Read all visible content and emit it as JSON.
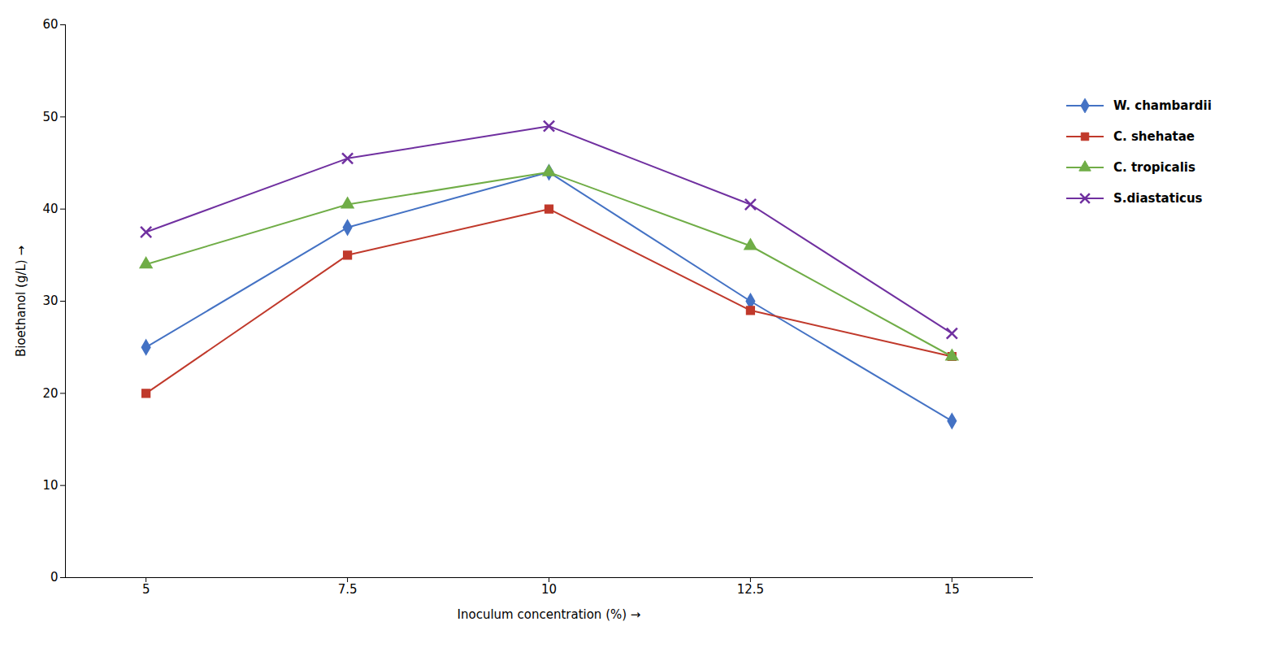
{
  "chart_data": {
    "type": "line",
    "xlabel": "Inoculum concentration (%)",
    "ylabel": "Bioethanol (g/L)",
    "x": [
      5,
      7.5,
      10,
      12.5,
      15
    ],
    "series": [
      {
        "name": "W. chambardii",
        "color": "#4472C4",
        "marker": "diamond",
        "values": [
          25,
          38,
          44,
          30,
          17
        ]
      },
      {
        "name": "C. shehatae",
        "color": "#C0392B",
        "marker": "square",
        "values": [
          20,
          35,
          40,
          29,
          24
        ]
      },
      {
        "name": "C. tropicalis",
        "color": "#70AD47",
        "marker": "triangle",
        "values": [
          34,
          40.5,
          44,
          36,
          24
        ]
      },
      {
        "name": "S.diastaticus",
        "color": "#7030A0",
        "marker": "x",
        "values": [
          37.5,
          45.5,
          49,
          40.5,
          26.5
        ]
      }
    ],
    "xlim": [
      4,
      16
    ],
    "xticks": [
      5,
      7.5,
      10,
      12.5,
      15
    ],
    "ylim": [
      0,
      60
    ],
    "yticks": [
      0,
      10,
      20,
      30,
      40,
      50,
      60
    ],
    "grid": false,
    "legend": "right"
  }
}
